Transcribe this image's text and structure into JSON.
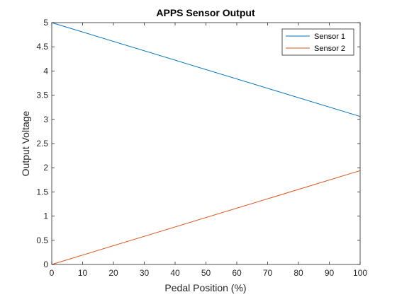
{
  "chart_data": {
    "type": "line",
    "title": "APPS Sensor Output",
    "xlabel": "Pedal Position (%)",
    "ylabel": "Output Voltage",
    "xlim": [
      0,
      100
    ],
    "ylim": [
      0,
      5
    ],
    "xticks": [
      "0",
      "10",
      "20",
      "30",
      "40",
      "50",
      "60",
      "70",
      "80",
      "90",
      "100"
    ],
    "yticks": [
      "0",
      "0.5",
      "1",
      "1.5",
      "2",
      "2.5",
      "3",
      "3.5",
      "4",
      "4.5",
      "5"
    ],
    "x": [
      0,
      100
    ],
    "series": [
      {
        "name": "Sensor 1",
        "values": [
          5,
          3.06
        ],
        "color": "#0072BD"
      },
      {
        "name": "Sensor 2",
        "values": [
          0,
          1.94
        ],
        "color": "#D95319"
      }
    ],
    "grid": false,
    "legend_position": "top-right"
  }
}
